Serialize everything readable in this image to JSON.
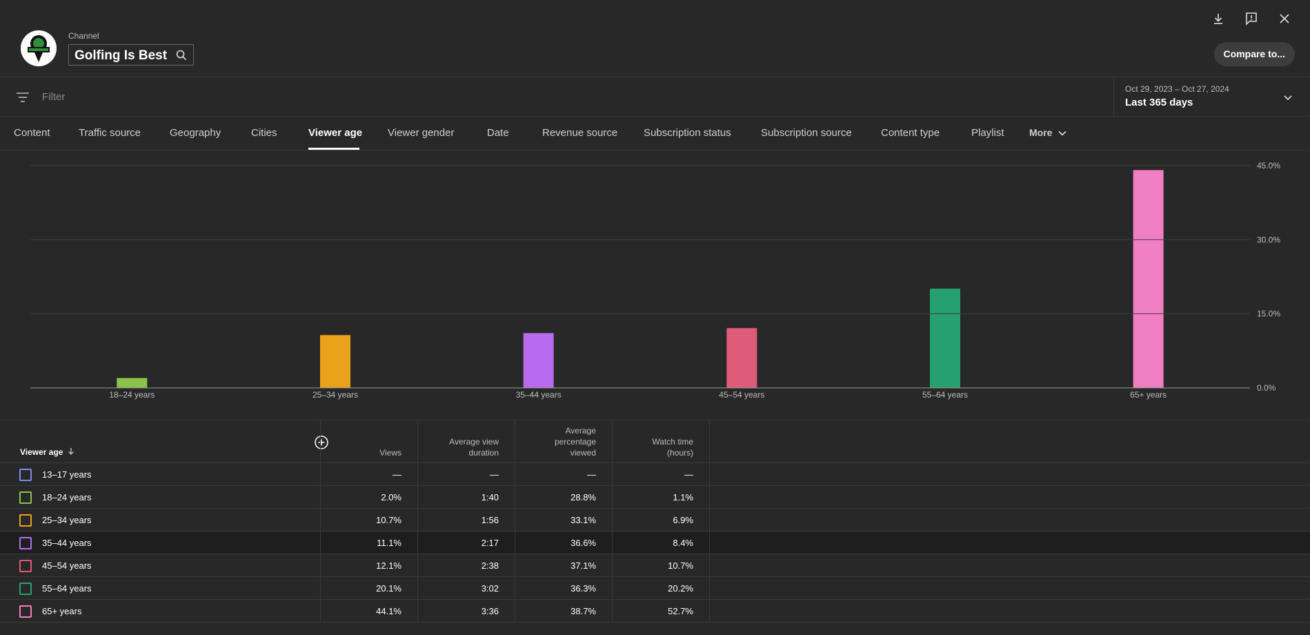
{
  "header": {
    "channel_label": "Channel",
    "channel_name": "Golfing Is Best",
    "compare_label": "Compare to..."
  },
  "filter": {
    "placeholder": "Filter",
    "date_range": "Oct 29, 2023 – Oct 27, 2024",
    "date_label": "Last 365 days"
  },
  "tabs": [
    {
      "label": "Content"
    },
    {
      "label": "Traffic source"
    },
    {
      "label": "Geography"
    },
    {
      "label": "Cities"
    },
    {
      "label": "Viewer age",
      "active": true
    },
    {
      "label": "Viewer gender"
    },
    {
      "label": "Date"
    },
    {
      "label": "Revenue source"
    },
    {
      "label": "Subscription status"
    },
    {
      "label": "Subscription source"
    },
    {
      "label": "Content type"
    },
    {
      "label": "Playlist"
    },
    {
      "label": "More"
    }
  ],
  "chart_data": {
    "type": "bar",
    "categories": [
      "18–24 years",
      "25–34 years",
      "35–44 years",
      "45–54 years",
      "55–64 years",
      "65+ years"
    ],
    "values": [
      2.0,
      10.7,
      11.1,
      12.1,
      20.1,
      44.1
    ],
    "colors": [
      "#8bc34a",
      "#eaa21b",
      "#b96bf0",
      "#e05a7a",
      "#26a06e",
      "#f07ec3"
    ],
    "ylim": [
      0,
      45
    ],
    "y_ticks": [
      "0.0%",
      "15.0%",
      "30.0%",
      "45.0%"
    ],
    "y_tick_values": [
      0,
      15,
      30,
      45
    ],
    "grid": true
  },
  "table": {
    "headers": {
      "first": "Viewer age",
      "views": "Views",
      "avd": [
        "Average view",
        "duration"
      ],
      "apv": [
        "Average",
        "percentage",
        "viewed"
      ],
      "wt": [
        "Watch time",
        "(hours)"
      ]
    },
    "rows": [
      {
        "label": "13–17 years",
        "color": "#7b8cf0",
        "views": "—",
        "avd": "—",
        "apv": "—",
        "wt": "—"
      },
      {
        "label": "18–24 years",
        "color": "#8bc34a",
        "views": "2.0%",
        "avd": "1:40",
        "apv": "28.8%",
        "wt": "1.1%"
      },
      {
        "label": "25–34 years",
        "color": "#eaa21b",
        "views": "10.7%",
        "avd": "1:56",
        "apv": "33.1%",
        "wt": "6.9%"
      },
      {
        "label": "35–44 years",
        "color": "#b96bf0",
        "views": "11.1%",
        "avd": "2:17",
        "apv": "36.6%",
        "wt": "8.4%"
      },
      {
        "label": "45–54 years",
        "color": "#e05a7a",
        "views": "12.1%",
        "avd": "2:38",
        "apv": "37.1%",
        "wt": "10.7%"
      },
      {
        "label": "55–64 years",
        "color": "#26a06e",
        "views": "20.1%",
        "avd": "3:02",
        "apv": "36.3%",
        "wt": "20.2%"
      },
      {
        "label": "65+ years",
        "color": "#f07ec3",
        "views": "44.1%",
        "avd": "3:36",
        "apv": "38.7%",
        "wt": "52.7%"
      }
    ]
  }
}
